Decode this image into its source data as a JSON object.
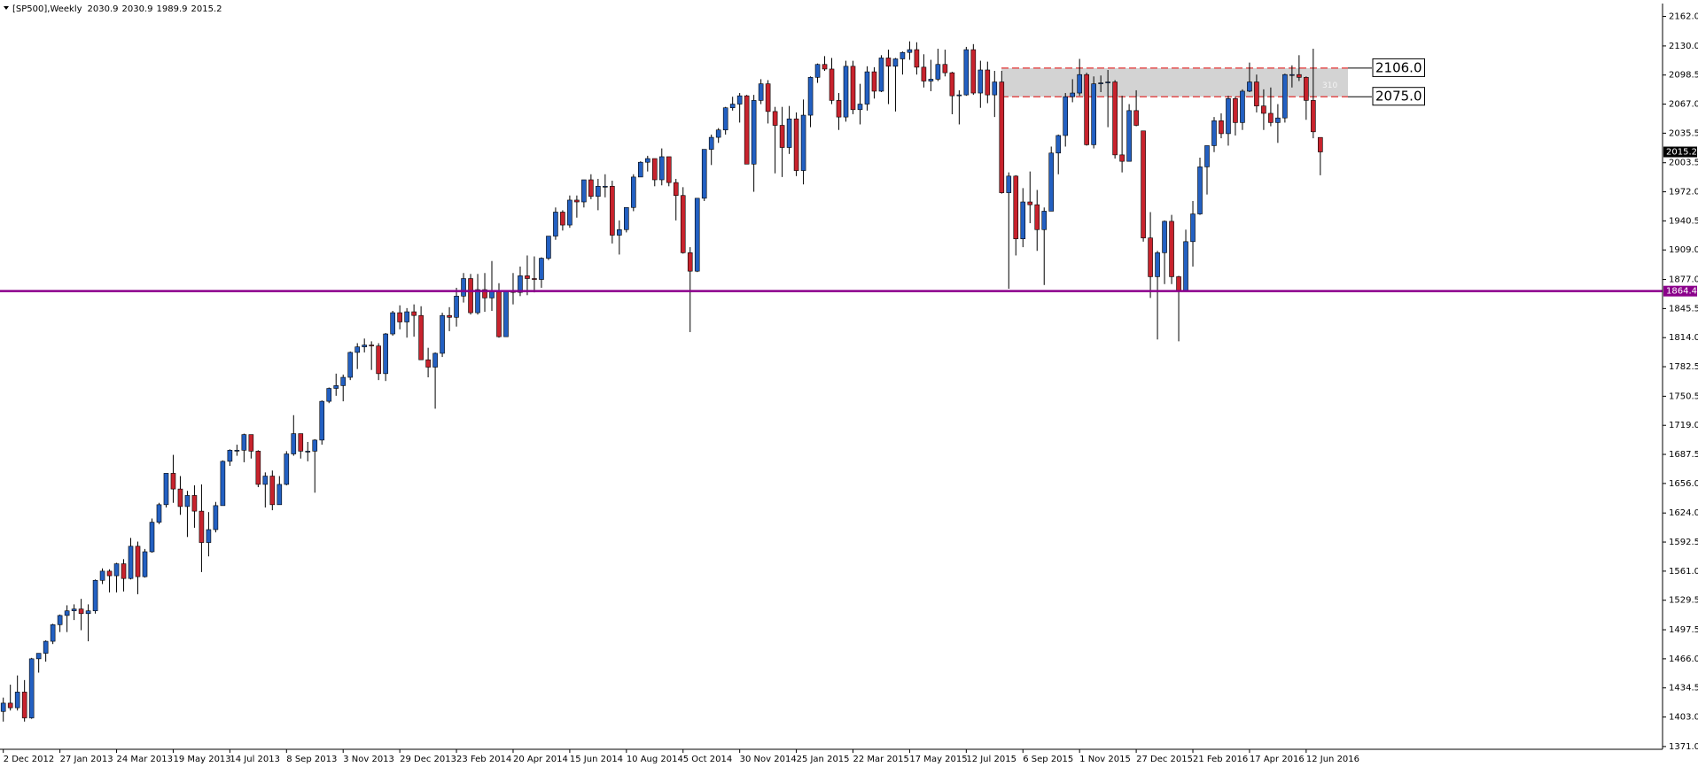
{
  "chart_data": {
    "type": "candlestick",
    "symbol": "[SP500],Weekly",
    "up_color": "#2360c2",
    "down_color": "#c8232d",
    "categories": [
      "2 Dec 2012",
      null,
      null,
      null,
      null,
      null,
      null,
      null,
      "27 Jan 2013",
      null,
      null,
      null,
      null,
      null,
      null,
      null,
      "24 Mar 2013",
      null,
      null,
      null,
      null,
      null,
      null,
      null,
      "19 May 2013",
      null,
      null,
      null,
      null,
      null,
      null,
      null,
      "14 Jul 2013",
      null,
      null,
      null,
      null,
      null,
      null,
      null,
      "8 Sep 2013",
      null,
      null,
      null,
      null,
      null,
      null,
      null,
      "3 Nov 2013",
      null,
      null,
      null,
      null,
      null,
      null,
      null,
      "29 Dec 2013",
      null,
      null,
      null,
      null,
      null,
      null,
      null,
      "23 Feb 2014",
      null,
      null,
      null,
      null,
      null,
      null,
      null,
      "20 Apr 2014",
      null,
      null,
      null,
      null,
      null,
      null,
      null,
      "15 Jun 2014",
      null,
      null,
      null,
      null,
      null,
      null,
      null,
      "10 Aug 2014",
      null,
      null,
      null,
      null,
      null,
      null,
      null,
      "5 Oct 2014",
      null,
      null,
      null,
      null,
      null,
      null,
      null,
      "30 Nov 2014",
      null,
      null,
      null,
      null,
      null,
      null,
      null,
      "25 Jan 2015",
      null,
      null,
      null,
      null,
      null,
      null,
      null,
      "22 Mar 2015",
      null,
      null,
      null,
      null,
      null,
      null,
      null,
      "17 May 2015",
      null,
      null,
      null,
      null,
      null,
      null,
      null,
      "12 Jul 2015",
      null,
      null,
      null,
      null,
      null,
      null,
      null,
      "6 Sep 2015",
      null,
      null,
      null,
      null,
      null,
      null,
      null,
      "1 Nov 2015",
      null,
      null,
      null,
      null,
      null,
      null,
      null,
      "27 Dec 2015",
      null,
      null,
      null,
      null,
      null,
      null,
      null,
      "21 Feb 2016",
      null,
      null,
      null,
      null,
      null,
      null,
      null,
      "17 Apr 2016",
      null,
      null,
      null,
      null,
      null,
      null,
      null,
      "12 Jun 2016",
      null,
      null
    ],
    "open": [
      1409,
      1418,
      1413,
      1430,
      1402,
      1466,
      1472,
      1485,
      1503,
      1513,
      1518,
      1520,
      1515,
      1518,
      1551,
      1561,
      1556,
      1569,
      1553,
      1588,
      1555,
      1582,
      1614,
      1633,
      1667,
      1650,
      1631,
      1643,
      1626,
      1592,
      1606,
      1632,
      1680,
      1692,
      1692,
      1709,
      1691,
      1655,
      1664,
      1633,
      1655,
      1688,
      1710,
      1691,
      1691,
      1703,
      1745,
      1759,
      1762,
      1771,
      1798,
      1804,
      1806,
      1805,
      1775,
      1818,
      1841,
      1831,
      1842,
      1838,
      1790,
      1782,
      1797,
      1838,
      1836,
      1859,
      1878,
      1841,
      1866,
      1857,
      1865,
      1815,
      1864,
      1863,
      1881,
      1878,
      1877,
      1900,
      1924,
      1950,
      1936,
      1963,
      1961,
      1985,
      1967,
      1978,
      1978,
      1925,
      1931,
      1955,
      1988,
      2004,
      2008,
      1985,
      2010,
      1982,
      1968,
      1906,
      1886,
      1965,
      2018,
      2031,
      2039,
      2063,
      2067,
      2076,
      2002,
      2071,
      2089,
      2059,
      2044,
      2020,
      2051,
      1995,
      2055,
      2096,
      2110,
      2105,
      2071,
      2053,
      2108,
      2061,
      2067,
      2102,
      2081,
      2117,
      2108,
      2116,
      2123,
      2126,
      2107,
      2092,
      2094,
      2110,
      2101,
      2076,
      2077,
      2126,
      2079,
      2104,
      2077,
      2091,
      1971,
      1989,
      1921,
      1961,
      1958,
      1931,
      1951,
      2014,
      2033,
      2075,
      2079,
      2099,
      2023,
      2089,
      2090,
      2091,
      2012,
      2005,
      2060,
      2038,
      1922,
      1880,
      1906,
      1940,
      1880,
      1864,
      1918,
      1948,
      1999,
      2022,
      2049,
      2035,
      2073,
      2047,
      2081,
      2091,
      2065,
      2057,
      2047,
      2052,
      2099,
      2099,
      2096,
      2071,
      2030.9
    ],
    "high": [
      1424,
      1438,
      1448,
      1443,
      1467,
      1472,
      1486,
      1504,
      1514,
      1524,
      1525,
      1531,
      1525,
      1552,
      1564,
      1563,
      1570,
      1574,
      1597,
      1593,
      1585,
      1618,
      1635,
      1667,
      1687,
      1664,
      1648,
      1654,
      1655,
      1625,
      1636,
      1681,
      1693,
      1698,
      1710,
      1709,
      1692,
      1668,
      1670,
      1664,
      1691,
      1730,
      1710,
      1701,
      1704,
      1746,
      1760,
      1775,
      1774,
      1799,
      1808,
      1813,
      1810,
      1808,
      1819,
      1843,
      1849,
      1846,
      1850,
      1848,
      1803,
      1798,
      1841,
      1847,
      1868,
      1884,
      1883,
      1883,
      1884,
      1897,
      1873,
      1865,
      1884,
      1891,
      1903,
      1902,
      1901,
      1924,
      1955,
      1952,
      1968,
      1968,
      1985,
      1991,
      1986,
      1991,
      1984,
      1941,
      1955,
      1991,
      2005,
      2011,
      2008,
      2019,
      2010,
      1986,
      1977,
      1912,
      1965,
      2018,
      2034,
      2041,
      2064,
      2075,
      2079,
      2077,
      2077,
      2094,
      2093,
      2064,
      2064,
      2065,
      2058,
      2072,
      2097,
      2111,
      2119,
      2117,
      2079,
      2114,
      2114,
      2089,
      2108,
      2107,
      2120,
      2126,
      2117,
      2124,
      2135,
      2134,
      2121,
      2115,
      2127,
      2126,
      2102,
      2082,
      2129,
      2132,
      2114,
      2113,
      2103,
      2103,
      1993,
      1990,
      1976,
      1994,
      1974,
      1955,
      2021,
      2034,
      2079,
      2094,
      2116,
      2101,
      2097,
      2098,
      2104,
      2093,
      2076,
      2067,
      2082,
      2038,
      1950,
      1908,
      1941,
      1947,
      1881,
      1931,
      1962,
      2009,
      2022,
      2053,
      2057,
      2076,
      2075,
      2083,
      2112,
      2099,
      2083,
      2085,
      2067,
      2100,
      2109,
      2120,
      2097,
      2127,
      2030.9
    ],
    "low": [
      1398,
      1410,
      1410,
      1398,
      1401,
      1451,
      1463,
      1482,
      1495,
      1495,
      1508,
      1497,
      1485,
      1515,
      1547,
      1538,
      1538,
      1539,
      1552,
      1536,
      1554,
      1581,
      1612,
      1630,
      1635,
      1622,
      1598,
      1608,
      1560,
      1577,
      1603,
      1632,
      1675,
      1686,
      1679,
      1683,
      1652,
      1630,
      1627,
      1633,
      1654,
      1686,
      1683,
      1680,
      1646,
      1698,
      1743,
      1751,
      1745,
      1768,
      1780,
      1798,
      1779,
      1768,
      1767,
      1816,
      1823,
      1814,
      1815,
      1790,
      1771,
      1737,
      1793,
      1821,
      1826,
      1852,
      1839,
      1839,
      1842,
      1843,
      1814,
      1815,
      1850,
      1859,
      1860,
      1863,
      1868,
      1898,
      1920,
      1930,
      1933,
      1944,
      1955,
      1964,
      1952,
      1966,
      1916,
      1904,
      1928,
      1951,
      1988,
      1994,
      1978,
      1979,
      1978,
      1941,
      1905,
      1820,
      1885,
      1962,
      2001,
      2025,
      2034,
      2060,
      2047,
      2002,
      1972,
      2067,
      2046,
      1992,
      1988,
      2013,
      1989,
      1980,
      2042,
      2090,
      2103,
      2067,
      2039,
      2048,
      2056,
      2045,
      2060,
      2073,
      2080,
      2067,
      2059,
      2099,
      2115,
      2099,
      2085,
      2081,
      2092,
      2097,
      2056,
      2045,
      2076,
      2077,
      2063,
      2068,
      2053,
      1970,
      1867,
      1903,
      1912,
      1938,
      1908,
      1871,
      1951,
      1991,
      2021,
      2069,
      2076,
      2022,
      2019,
      2080,
      2042,
      2008,
      1993,
      2005,
      2043,
      1918,
      1857,
      1812,
      1872,
      1872,
      1810,
      1864,
      1891,
      1947,
      1969,
      2015,
      2030,
      2022,
      2033,
      2039,
      2080,
      2058,
      2039,
      2043,
      2025,
      2047,
      2085,
      2092,
      2050,
      2030,
      1989.9
    ],
    "close": [
      1418,
      1413,
      1430,
      1402,
      1466,
      1472,
      1485,
      1503,
      1513,
      1518,
      1520,
      1515,
      1518,
      1551,
      1561,
      1556,
      1569,
      1553,
      1588,
      1555,
      1582,
      1614,
      1633,
      1667,
      1650,
      1631,
      1643,
      1626,
      1592,
      1606,
      1632,
      1680,
      1692,
      1692,
      1709,
      1691,
      1655,
      1664,
      1633,
      1655,
      1688,
      1710,
      1691,
      1691,
      1703,
      1745,
      1759,
      1762,
      1771,
      1798,
      1804,
      1806,
      1805,
      1775,
      1818,
      1841,
      1831,
      1842,
      1838,
      1790,
      1782,
      1797,
      1838,
      1836,
      1859,
      1878,
      1841,
      1866,
      1857,
      1865,
      1815,
      1864,
      1863,
      1881,
      1878,
      1877,
      1900,
      1924,
      1950,
      1936,
      1963,
      1961,
      1985,
      1967,
      1978,
      1978,
      1925,
      1931,
      1955,
      1988,
      2004,
      2008,
      1985,
      2010,
      1982,
      1968,
      1906,
      1886,
      1965,
      2018,
      2031,
      2039,
      2063,
      2067,
      2076,
      2002,
      2071,
      2089,
      2059,
      2044,
      2020,
      2051,
      1995,
      2055,
      2096,
      2110,
      2105,
      2071,
      2053,
      2108,
      2061,
      2067,
      2102,
      2081,
      2117,
      2108,
      2116,
      2123,
      2126,
      2107,
      2092,
      2094,
      2110,
      2101,
      2076,
      2077,
      2126,
      2079,
      2104,
      2077,
      2091,
      1971,
      1989,
      1921,
      1961,
      1958,
      1931,
      1951,
      2014,
      2033,
      2075,
      2079,
      2099,
      2023,
      2089,
      2090,
      2091,
      2012,
      2005,
      2060,
      2044,
      1922,
      1880,
      1906,
      1940,
      1880,
      1864,
      1918,
      1948,
      1999,
      2022,
      2049,
      2035,
      2073,
      2047,
      2081,
      2091,
      2065,
      2057,
      2047,
      2052,
      2099,
      2099,
      2096,
      2071,
      2037,
      2015.2
    ],
    "ylim": [
      1368,
      2175
    ],
    "yticks": [
      {
        "value": 2162,
        "label": "2162.0"
      },
      {
        "value": 2130,
        "label": "2130.0"
      },
      {
        "value": 2098.5,
        "label": "2098.5"
      },
      {
        "value": 2067,
        "label": "2067.0"
      },
      {
        "value": 2035.5,
        "label": "2035.5"
      },
      {
        "value": 2003.5,
        "label": "2003.5"
      },
      {
        "value": 1972,
        "label": "1972.0"
      },
      {
        "value": 1940.5,
        "label": "1940.5"
      },
      {
        "value": 1909,
        "label": "1909.0"
      },
      {
        "value": 1877,
        "label": "1877.0"
      },
      {
        "value": 1845.5,
        "label": "1845.5"
      },
      {
        "value": 1814,
        "label": "1814.0"
      },
      {
        "value": 1782.5,
        "label": "1782.5"
      },
      {
        "value": 1750.5,
        "label": "1750.5"
      },
      {
        "value": 1719,
        "label": "1719.0"
      },
      {
        "value": 1687.5,
        "label": "1687.5"
      },
      {
        "value": 1656,
        "label": "1656.0"
      },
      {
        "value": 1624,
        "label": "1624.0"
      },
      {
        "value": 1592.5,
        "label": "1592.5"
      },
      {
        "value": 1561,
        "label": "1561.0"
      },
      {
        "value": 1529.5,
        "label": "1529.5"
      },
      {
        "value": 1497.5,
        "label": "1497.5"
      },
      {
        "value": 1466,
        "label": "1466.0"
      },
      {
        "value": 1434.5,
        "label": "1434.5"
      },
      {
        "value": 1403,
        "label": "1403.0"
      },
      {
        "value": 1371,
        "label": "1371.0"
      }
    ],
    "hline": {
      "value": 1864.4,
      "color": "#8b008b"
    },
    "zone": {
      "top": {
        "value": 2106,
        "label": "2106.0"
      },
      "bottom": {
        "value": 2075,
        "label": "2075.0"
      },
      "label": "310",
      "fill": "#d3d3d3",
      "line_color": "#e03030"
    }
  }
}
